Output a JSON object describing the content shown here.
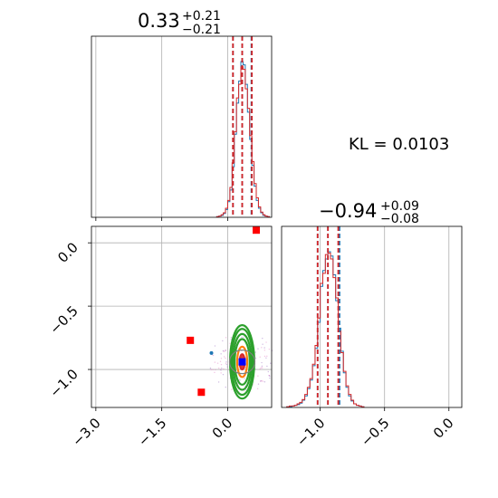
{
  "chart_data": [
    {
      "type": "histogram",
      "panel": "top-left",
      "parameter_index": 0,
      "title": {
        "median": "0.33",
        "plus": "+0.21",
        "minus": "−0.21"
      },
      "xlim": [
        -3.1,
        1.0
      ],
      "grid": true,
      "series": [
        {
          "name": "",
          "color": "#1f77b4",
          "bins": [
            -0.25,
            -0.2,
            -0.15,
            -0.1,
            -0.05,
            0.0,
            0.05,
            0.1,
            0.15,
            0.2,
            0.25,
            0.3,
            0.35,
            0.4,
            0.45,
            0.5,
            0.55,
            0.6,
            0.65,
            0.7,
            0.75,
            0.8,
            0.85,
            0.9,
            0.95
          ],
          "counts": [
            1,
            2,
            3,
            6,
            12,
            24,
            42,
            78,
            128,
            176,
            210,
            240,
            235,
            205,
            162,
            120,
            80,
            48,
            26,
            14,
            7,
            3,
            2,
            1
          ]
        },
        {
          "name": "",
          "color": "#d62728",
          "bins": [
            -0.25,
            -0.2,
            -0.15,
            -0.1,
            -0.05,
            0.0,
            0.05,
            0.1,
            0.15,
            0.2,
            0.25,
            0.3,
            0.35,
            0.4,
            0.45,
            0.5,
            0.55,
            0.6,
            0.65,
            0.7,
            0.75,
            0.8,
            0.85,
            0.9,
            0.95
          ],
          "counts": [
            1,
            2,
            4,
            7,
            14,
            26,
            46,
            84,
            132,
            184,
            205,
            232,
            228,
            198,
            168,
            126,
            86,
            52,
            30,
            16,
            8,
            4,
            2,
            1
          ]
        }
      ],
      "quantile_lines": [
        {
          "x": 0.12,
          "color": "#1f77b4"
        },
        {
          "x": 0.33,
          "color": "#1f77b4"
        },
        {
          "x": 0.54,
          "color": "#1f77b4"
        },
        {
          "x": 0.12,
          "color": "#d62728"
        },
        {
          "x": 0.33,
          "color": "#d62728"
        },
        {
          "x": 0.55,
          "color": "#d62728"
        }
      ]
    },
    {
      "type": "scatter",
      "panel": "bottom-left",
      "x_param": 0,
      "y_param": 1,
      "xlim": [
        -3.1,
        1.0
      ],
      "ylim": [
        -1.3,
        0.13
      ],
      "xticks": [
        "−3.0",
        "−1.5",
        "0.0"
      ],
      "xtick_values": [
        -3.0,
        -1.5,
        0.0
      ],
      "yticks": [
        "0.0",
        "−0.5",
        "−1.0"
      ],
      "ytick_values": [
        0.0,
        -0.5,
        -1.0
      ],
      "grid": true,
      "contour_center": [
        0.33,
        -0.94
      ],
      "contour_radii": [
        [
          0.06,
          0.03
        ],
        [
          0.12,
          0.06
        ],
        [
          0.18,
          0.09
        ],
        [
          0.22,
          0.11
        ],
        [
          0.26,
          0.13
        ],
        [
          0.29,
          0.145
        ]
      ],
      "contour_colors": [
        "#d62728",
        "#ff7f0e",
        "#2ca02c",
        "#2ca02c",
        "#2ca02c",
        "#2ca02c"
      ],
      "points_red_squares": [
        [
          0.65,
          0.1
        ],
        [
          -0.85,
          -0.77
        ],
        [
          -0.6,
          -1.18
        ]
      ],
      "point_blue_square": [
        0.33,
        -0.94
      ],
      "point_teal": [
        -0.37,
        -0.87
      ]
    },
    {
      "type": "histogram",
      "panel": "bottom-right",
      "parameter_index": 1,
      "title": {
        "median": "−0.94",
        "plus": "+0.09",
        "minus": "−0.08"
      },
      "xlim": [
        -1.3,
        0.1
      ],
      "xticks": [
        "−1.0",
        "−0.5",
        "0.0"
      ],
      "xtick_values": [
        -1.0,
        -0.5,
        0.0
      ],
      "grid": true,
      "series": [
        {
          "name": "",
          "color": "#1f77b4",
          "bins": [
            -1.26,
            -1.24,
            -1.22,
            -1.2,
            -1.18,
            -1.16,
            -1.14,
            -1.12,
            -1.1,
            -1.08,
            -1.06,
            -1.04,
            -1.02,
            -1.0,
            -0.98,
            -0.96,
            -0.94,
            -0.92,
            -0.9,
            -0.88,
            -0.86,
            -0.84,
            -0.82,
            -0.8,
            -0.78,
            -0.76,
            -0.74,
            -0.72,
            -0.7,
            -0.68,
            -0.66
          ],
          "counts": [
            1,
            1,
            2,
            3,
            4,
            6,
            10,
            16,
            26,
            38,
            58,
            82,
            118,
            168,
            190,
            206,
            216,
            210,
            184,
            148,
            110,
            78,
            48,
            28,
            16,
            9,
            5,
            3,
            2,
            1
          ]
        },
        {
          "name": "",
          "color": "#d62728",
          "bins": [
            -1.26,
            -1.24,
            -1.22,
            -1.2,
            -1.18,
            -1.16,
            -1.14,
            -1.12,
            -1.1,
            -1.08,
            -1.06,
            -1.04,
            -1.02,
            -1.0,
            -0.98,
            -0.96,
            -0.94,
            -0.92,
            -0.9,
            -0.88,
            -0.86,
            -0.84,
            -0.82,
            -0.8,
            -0.78,
            -0.76,
            -0.74,
            -0.72,
            -0.7,
            -0.68,
            -0.66
          ],
          "counts": [
            1,
            2,
            2,
            3,
            5,
            7,
            11,
            18,
            28,
            40,
            60,
            86,
            124,
            172,
            186,
            212,
            214,
            206,
            180,
            152,
            106,
            76,
            50,
            30,
            18,
            10,
            5,
            3,
            2,
            1
          ]
        }
      ],
      "quantile_lines": [
        {
          "x": -1.02,
          "color": "#1f77b4"
        },
        {
          "x": -0.94,
          "color": "#1f77b4"
        },
        {
          "x": -0.85,
          "color": "#1f77b4"
        },
        {
          "x": -1.02,
          "color": "#d62728"
        },
        {
          "x": -0.94,
          "color": "#d62728"
        },
        {
          "x": -0.86,
          "color": "#d62728"
        }
      ]
    }
  ],
  "annotation": {
    "kl_text": "KL = 0.0103"
  }
}
